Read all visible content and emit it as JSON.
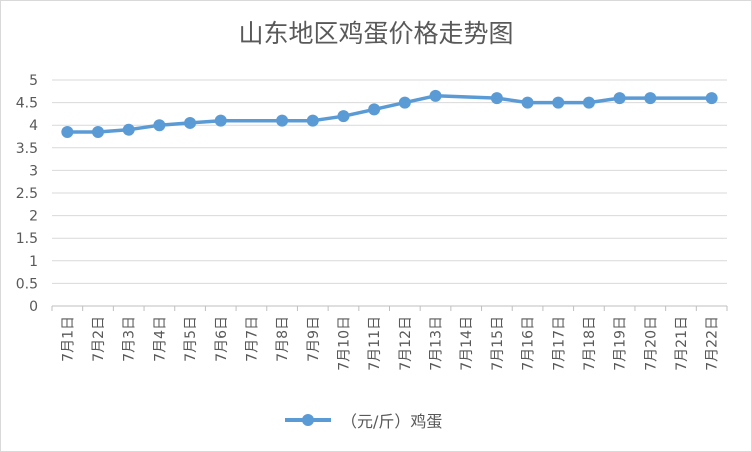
{
  "chart_data": {
    "type": "line",
    "title": "山东地区鸡蛋价格走势图",
    "categories": [
      "7月1日",
      "7月2日",
      "7月3日",
      "7月4日",
      "7月5日",
      "7月6日",
      "7月7日",
      "7月8日",
      "7月9日",
      "7月10日",
      "7月11日",
      "7月12日",
      "7月13日",
      "7月14日",
      "7月15日",
      "7月16日",
      "7月17日",
      "7月18日",
      "7月19日",
      "7月20日",
      "7月21日",
      "7月22日"
    ],
    "series": [
      {
        "name": "（元/斤）鸡蛋",
        "values": [
          3.85,
          3.85,
          3.9,
          4.0,
          4.05,
          4.1,
          null,
          4.1,
          4.1,
          4.2,
          4.35,
          4.5,
          4.65,
          null,
          4.6,
          4.5,
          4.5,
          4.5,
          4.6,
          4.6,
          null,
          4.6
        ],
        "color": "#5b9bd5"
      }
    ],
    "ylim": [
      0,
      5
    ],
    "yticks": [
      "0",
      "0.5",
      "1",
      "1.5",
      "2",
      "2.5",
      "3",
      "3.5",
      "4",
      "4.5",
      "5"
    ],
    "grid": true,
    "legend": "bottom",
    "xlabel": "",
    "ylabel": ""
  }
}
